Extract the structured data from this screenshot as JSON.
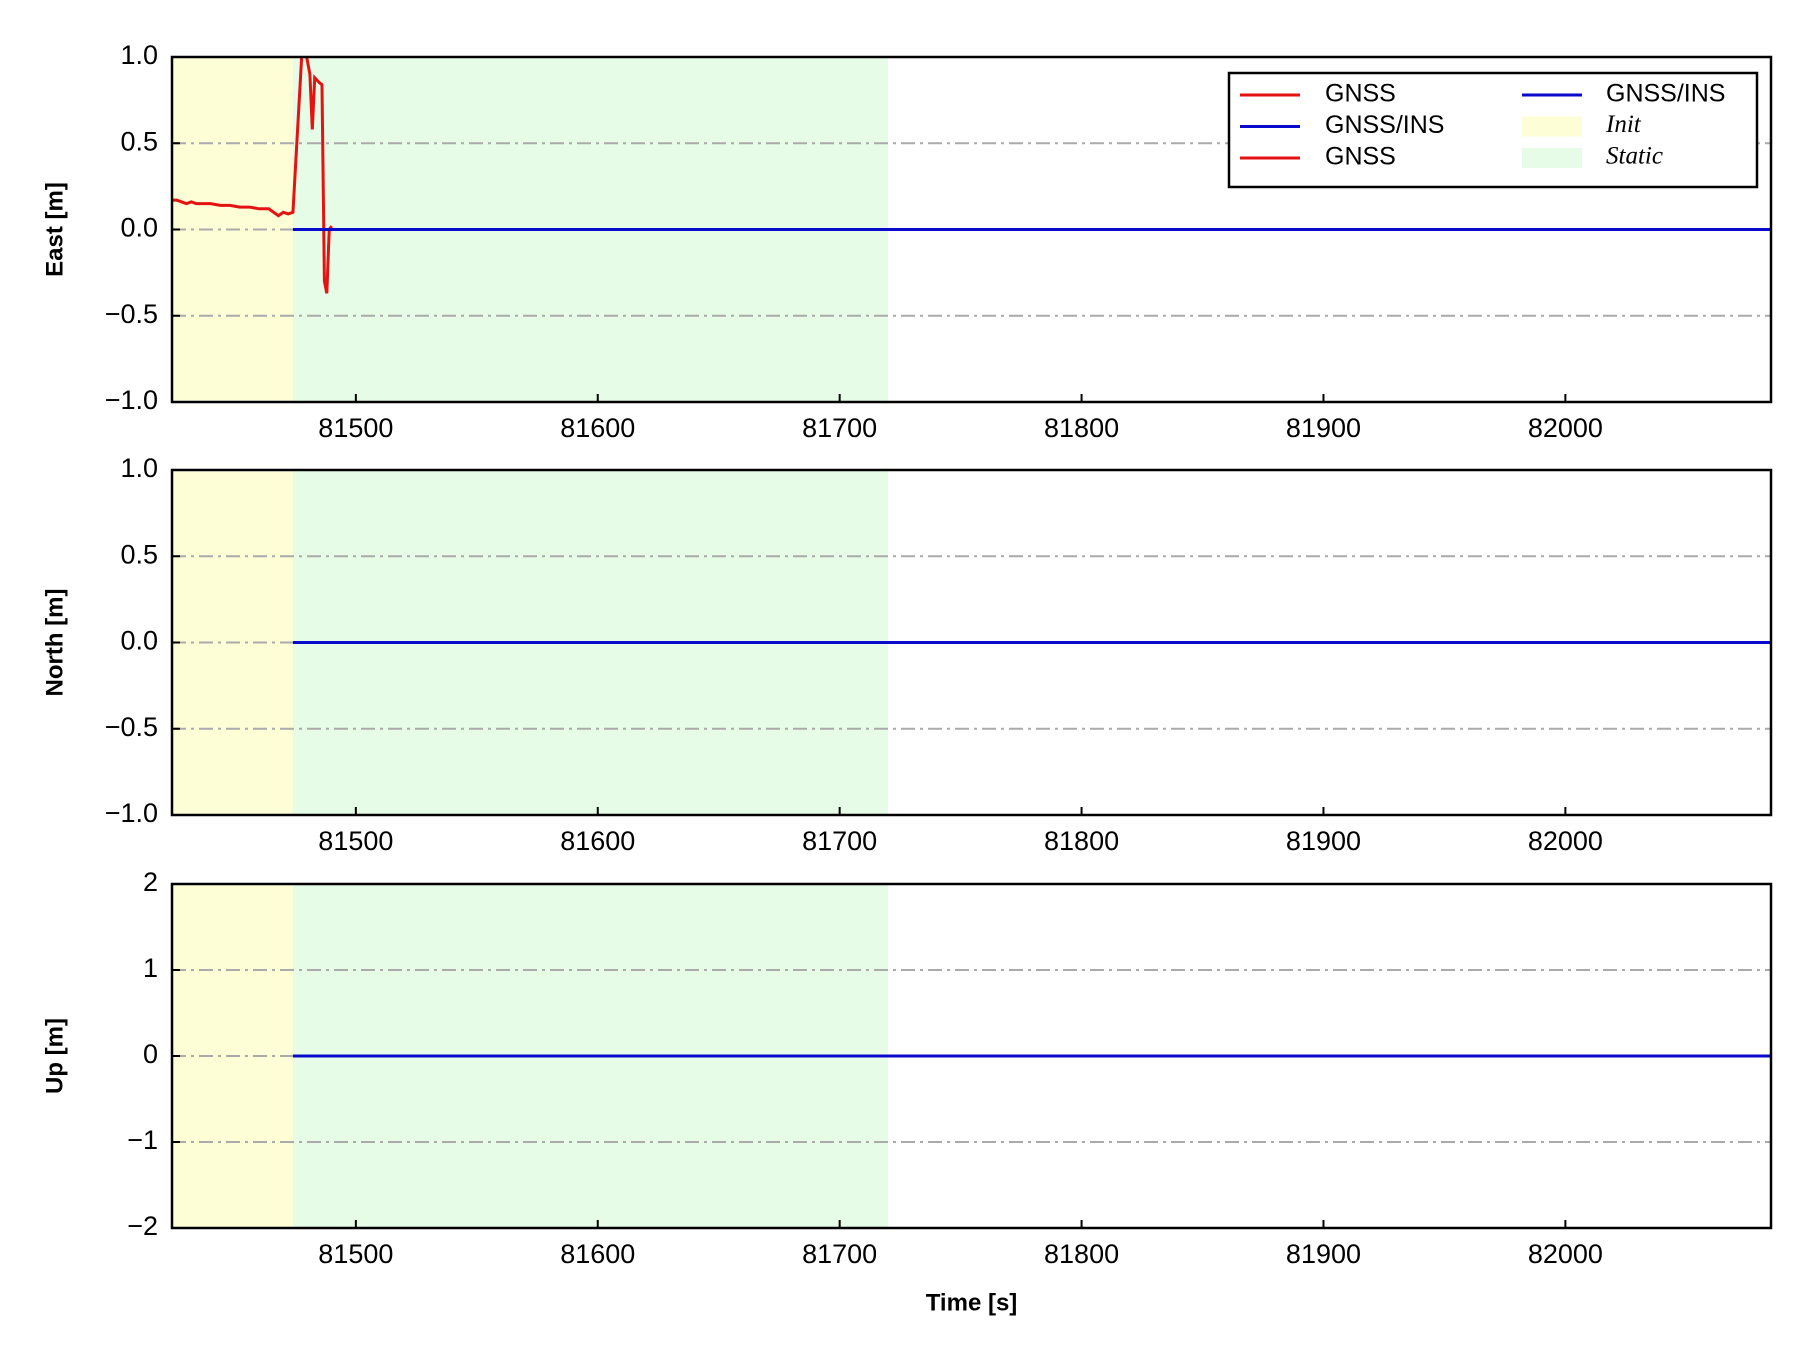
{
  "chart_data": [
    {
      "type": "line",
      "ylabel": "East [m]",
      "xlim": [
        81424,
        82085
      ],
      "xticks": [
        81500,
        81600,
        81700,
        81800,
        81900,
        82000
      ],
      "ylim": [
        -1,
        1
      ],
      "yticks": [
        {
          "value": -1,
          "label": "−1.0"
        },
        {
          "value": -0.5,
          "label": "−0.5"
        },
        {
          "value": 0,
          "label": "0.0"
        },
        {
          "value": 0.5,
          "label": "0.5"
        },
        {
          "value": 1,
          "label": "1.0"
        }
      ],
      "grid": true,
      "spans": [
        {
          "name": "Init",
          "xlim": [
            81424,
            81474
          ],
          "color": "#fdfdd6"
        },
        {
          "name": "Static",
          "xlim": [
            81474,
            81720
          ],
          "color": "#e6fce6"
        }
      ],
      "series": [
        {
          "name": "GNSS",
          "color": "#e51212",
          "x": [
            81424,
            81426,
            81428,
            81430,
            81432,
            81434,
            81436,
            81440,
            81444,
            81448,
            81452,
            81456,
            81460,
            81464,
            81466,
            81468,
            81470,
            81472,
            81474,
            81476,
            81478,
            81479,
            81481,
            81482,
            81483,
            81485,
            81486,
            81487,
            81488,
            81489,
            81490
          ],
          "values": [
            0.17,
            0.17,
            0.16,
            0.15,
            0.16,
            0.15,
            0.15,
            0.15,
            0.14,
            0.14,
            0.13,
            0.13,
            0.12,
            0.12,
            0.1,
            0.08,
            0.1,
            0.09,
            0.1,
            0.6,
            1.1,
            1.05,
            0.9,
            0.58,
            0.88,
            0.85,
            0.84,
            -0.3,
            -0.37,
            0.0,
            0.02
          ]
        },
        {
          "name": "GNSS/INS",
          "color": "#0a0acc",
          "x": [
            81474,
            82085
          ],
          "values": [
            0,
            0
          ]
        }
      ],
      "legend_extra": [
        {
          "name": "GNSS",
          "color": "#e51212"
        },
        {
          "name": "GNSS/INS",
          "color": "#0a0acc"
        }
      ]
    },
    {
      "type": "line",
      "ylabel": "North [m]",
      "xlim": [
        81424,
        82085
      ],
      "xticks": [
        81500,
        81600,
        81700,
        81800,
        81900,
        82000
      ],
      "ylim": [
        -1,
        1
      ],
      "yticks": [
        {
          "value": -1,
          "label": "−1.0"
        },
        {
          "value": -0.5,
          "label": "−0.5"
        },
        {
          "value": 0,
          "label": "0.0"
        },
        {
          "value": 0.5,
          "label": "0.5"
        },
        {
          "value": 1,
          "label": "1.0"
        }
      ],
      "grid": true,
      "spans": [
        {
          "xlim": [
            81424,
            81474
          ],
          "color": "#fdfdd6"
        },
        {
          "xlim": [
            81474,
            81720
          ],
          "color": "#e6fce6"
        }
      ],
      "series": [
        {
          "color": "#0a0acc",
          "x": [
            81474,
            82085
          ],
          "values": [
            0,
            0
          ]
        }
      ]
    },
    {
      "type": "line",
      "ylabel": "Up [m]",
      "xlabel": "Time [s]",
      "xlim": [
        81424,
        82085
      ],
      "xticks": [
        81500,
        81600,
        81700,
        81800,
        81900,
        82000
      ],
      "ylim": [
        -2,
        2
      ],
      "yticks": [
        {
          "value": -2,
          "label": "−2"
        },
        {
          "value": -1,
          "label": "−1"
        },
        0,
        1,
        2
      ],
      "grid": true,
      "spans": [
        {
          "xlim": [
            81424,
            81474
          ],
          "color": "#fdfdd6"
        },
        {
          "xlim": [
            81474,
            81720
          ],
          "color": "#e6fce6"
        }
      ],
      "series": [
        {
          "color": "#0a0acc",
          "x": [
            81474,
            82085
          ],
          "values": [
            0,
            0
          ]
        }
      ]
    }
  ]
}
